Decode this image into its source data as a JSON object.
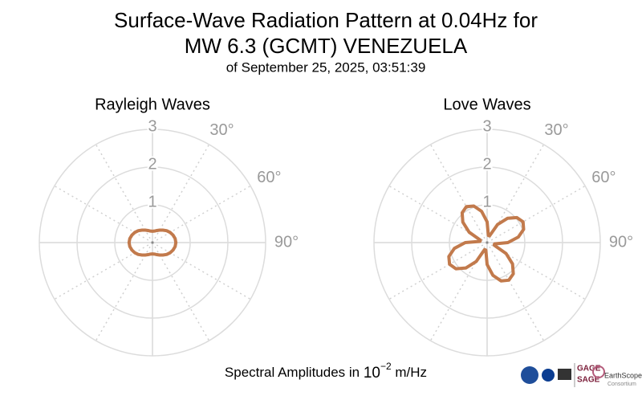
{
  "header": {
    "title": [
      "Surface-Wave Radiation Pattern at 0.04Hz for",
      "MW 6.3 (GCMT) VENEZUELA"
    ],
    "subtitle": "of September 25, 2025, 03:51:39"
  },
  "footer": {
    "xlabel": {
      "text": "Spectral Amplitudes in ",
      "base": "10",
      "exponent": "−2",
      "unit": " m/Hz"
    },
    "logos": [
      "GAGE",
      "SAGE",
      "EarthScope",
      "Consortium"
    ]
  },
  "chart_data": [
    {
      "type": "polar",
      "title": "Rayleigh Waves",
      "color": "#c27a4c",
      "theta": [
        0,
        10,
        20,
        30,
        40,
        50,
        60,
        70,
        80,
        90,
        100,
        110,
        120,
        130,
        140,
        150,
        160,
        170,
        180,
        190,
        200,
        210,
        220,
        230,
        240,
        250,
        260,
        270,
        280,
        290,
        300,
        310,
        320,
        330,
        340,
        350
      ],
      "r": [
        0.3,
        0.31,
        0.34,
        0.38,
        0.43,
        0.49,
        0.54,
        0.58,
        0.61,
        0.62,
        0.61,
        0.58,
        0.54,
        0.49,
        0.43,
        0.38,
        0.34,
        0.31,
        0.3,
        0.31,
        0.34,
        0.38,
        0.43,
        0.49,
        0.54,
        0.58,
        0.61,
        0.62,
        0.61,
        0.58,
        0.54,
        0.49,
        0.43,
        0.38,
        0.34,
        0.31
      ],
      "rlim": [
        0,
        3
      ],
      "rticks": [
        1,
        2,
        3
      ],
      "thetagrid": [
        0,
        30,
        60,
        90,
        120,
        150,
        180,
        210,
        240,
        270,
        300,
        330
      ],
      "thetaticks": [
        {
          "value": 30,
          "label": "30°"
        },
        {
          "value": 60,
          "label": "60°"
        },
        {
          "value": 90,
          "label": "90°"
        }
      ]
    },
    {
      "type": "polar",
      "title": "Love Waves",
      "color": "#c27a4c",
      "theta": [
        0,
        10,
        20,
        30,
        40,
        50,
        60,
        70,
        80,
        90,
        100,
        110,
        120,
        130,
        140,
        150,
        160,
        170,
        180,
        190,
        200,
        210,
        220,
        230,
        240,
        250,
        260,
        270,
        280,
        290,
        300,
        310,
        320,
        330,
        340,
        350
      ],
      "r": [
        0.55,
        0.19,
        0.19,
        0.55,
        0.84,
        1.03,
        1.1,
        1.03,
        0.84,
        0.55,
        0.2,
        0.2,
        0.58,
        0.88,
        1.08,
        1.15,
        1.08,
        0.88,
        0.58,
        0.2,
        0.2,
        0.58,
        0.88,
        1.08,
        1.15,
        1.08,
        0.88,
        0.58,
        0.19,
        0.19,
        0.55,
        0.84,
        1.03,
        1.1,
        1.03,
        0.84
      ],
      "rlim": [
        0,
        3
      ],
      "rticks": [
        1,
        2,
        3
      ],
      "thetagrid": [
        0,
        30,
        60,
        90,
        120,
        150,
        180,
        210,
        240,
        270,
        300,
        330
      ],
      "thetaticks": [
        {
          "value": 30,
          "label": "30°"
        },
        {
          "value": 60,
          "label": "60°"
        },
        {
          "value": 90,
          "label": "90°"
        }
      ]
    }
  ]
}
